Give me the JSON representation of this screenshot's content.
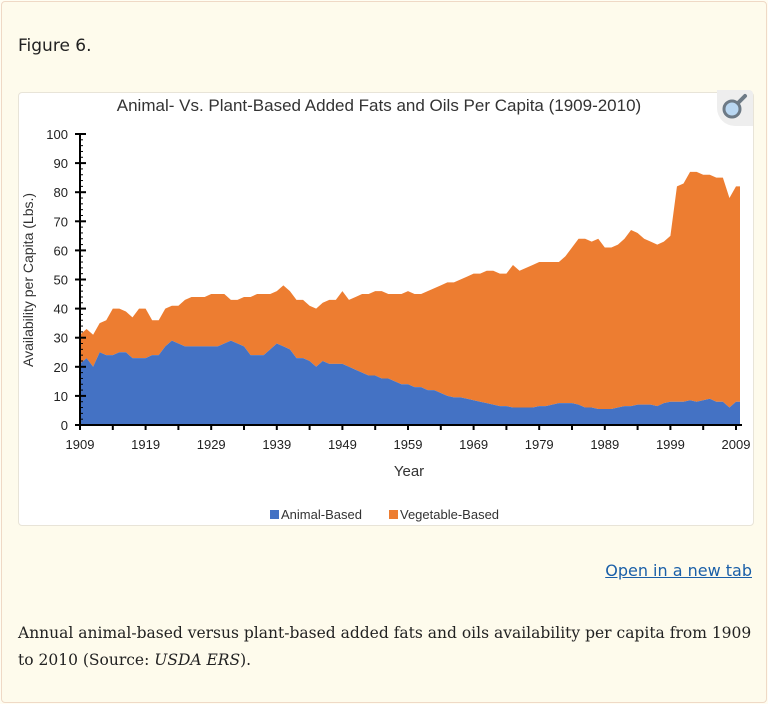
{
  "figure_label": "Figure 6.",
  "open_link": "Open in a new tab",
  "caption": {
    "text_before": "Annual animal-based versus plant-based added fats and oils availability per capita from 1909 to 2010 (Source: ",
    "source": "USDA ERS",
    "text_after": ")."
  },
  "colors": {
    "animal": "#4472c4",
    "vegetable": "#ed7d31"
  },
  "chart_data": {
    "type": "area",
    "stacked": true,
    "title": "Animal- Vs. Plant-Based Added Fats and Oils Per Capita (1909-2010)",
    "xlabel": "Year",
    "ylabel": "Availability per Capita (Lbs.)",
    "xlim": [
      1909,
      2010
    ],
    "ylim": [
      0,
      100
    ],
    "x_ticks": [
      "1909",
      "1919",
      "1929",
      "1939",
      "1949",
      "1959",
      "1969",
      "1979",
      "1989",
      "1999",
      "2009"
    ],
    "y_ticks": [
      "0",
      "10",
      "20",
      "30",
      "40",
      "50",
      "60",
      "70",
      "80",
      "90",
      "100"
    ],
    "legend_position": "bottom",
    "x_start": 1909,
    "series": [
      {
        "name": "Animal-Based",
        "values": [
          21,
          23,
          20,
          25,
          24,
          24,
          25,
          25,
          23,
          23,
          23,
          24,
          24,
          27,
          29,
          28,
          27,
          27,
          27,
          27,
          27,
          27,
          28,
          29,
          28,
          27,
          24,
          24,
          24,
          26,
          28,
          27,
          26,
          23,
          23,
          22,
          20,
          22,
          21,
          21,
          21,
          20,
          19,
          18,
          17,
          17,
          16,
          16,
          15,
          14,
          14,
          13,
          13,
          12,
          12,
          11,
          10,
          9.5,
          9.5,
          9,
          8.5,
          8,
          7.5,
          7,
          6.5,
          6.5,
          6,
          6,
          6,
          6,
          6.5,
          6.5,
          7,
          7.5,
          7.5,
          7.5,
          7,
          6,
          6,
          5.5,
          5.5,
          5.5,
          6,
          6.5,
          6.5,
          7,
          7,
          7,
          6.5,
          7.5,
          8,
          8,
          8,
          8.5,
          8,
          8.5,
          9,
          8,
          8,
          6,
          8
        ]
      },
      {
        "name": "Vegetable-Based",
        "values": [
          10,
          10,
          11,
          10,
          12,
          16,
          15,
          14,
          14,
          17,
          17,
          12,
          12,
          13,
          12,
          13,
          16,
          17,
          17,
          17,
          18,
          18,
          17,
          14,
          15,
          17,
          20,
          21,
          21,
          19,
          18,
          21,
          20,
          20,
          20,
          19,
          20,
          20,
          22,
          22,
          25,
          23,
          25,
          27,
          28,
          29,
          30,
          29,
          30,
          31,
          32,
          32,
          32,
          34,
          35,
          37,
          39,
          39.5,
          40.5,
          42,
          43.5,
          44,
          45.5,
          46,
          45.5,
          45.5,
          49,
          47,
          48,
          49,
          49.5,
          49.5,
          49,
          48.5,
          50.5,
          53.5,
          57,
          58,
          57,
          58.5,
          55.5,
          55.5,
          56,
          57.5,
          60.5,
          59,
          57,
          56,
          55.5,
          55.5,
          57,
          74,
          75,
          78.5,
          79,
          77.5,
          77,
          77,
          77,
          72,
          74
        ]
      }
    ]
  }
}
